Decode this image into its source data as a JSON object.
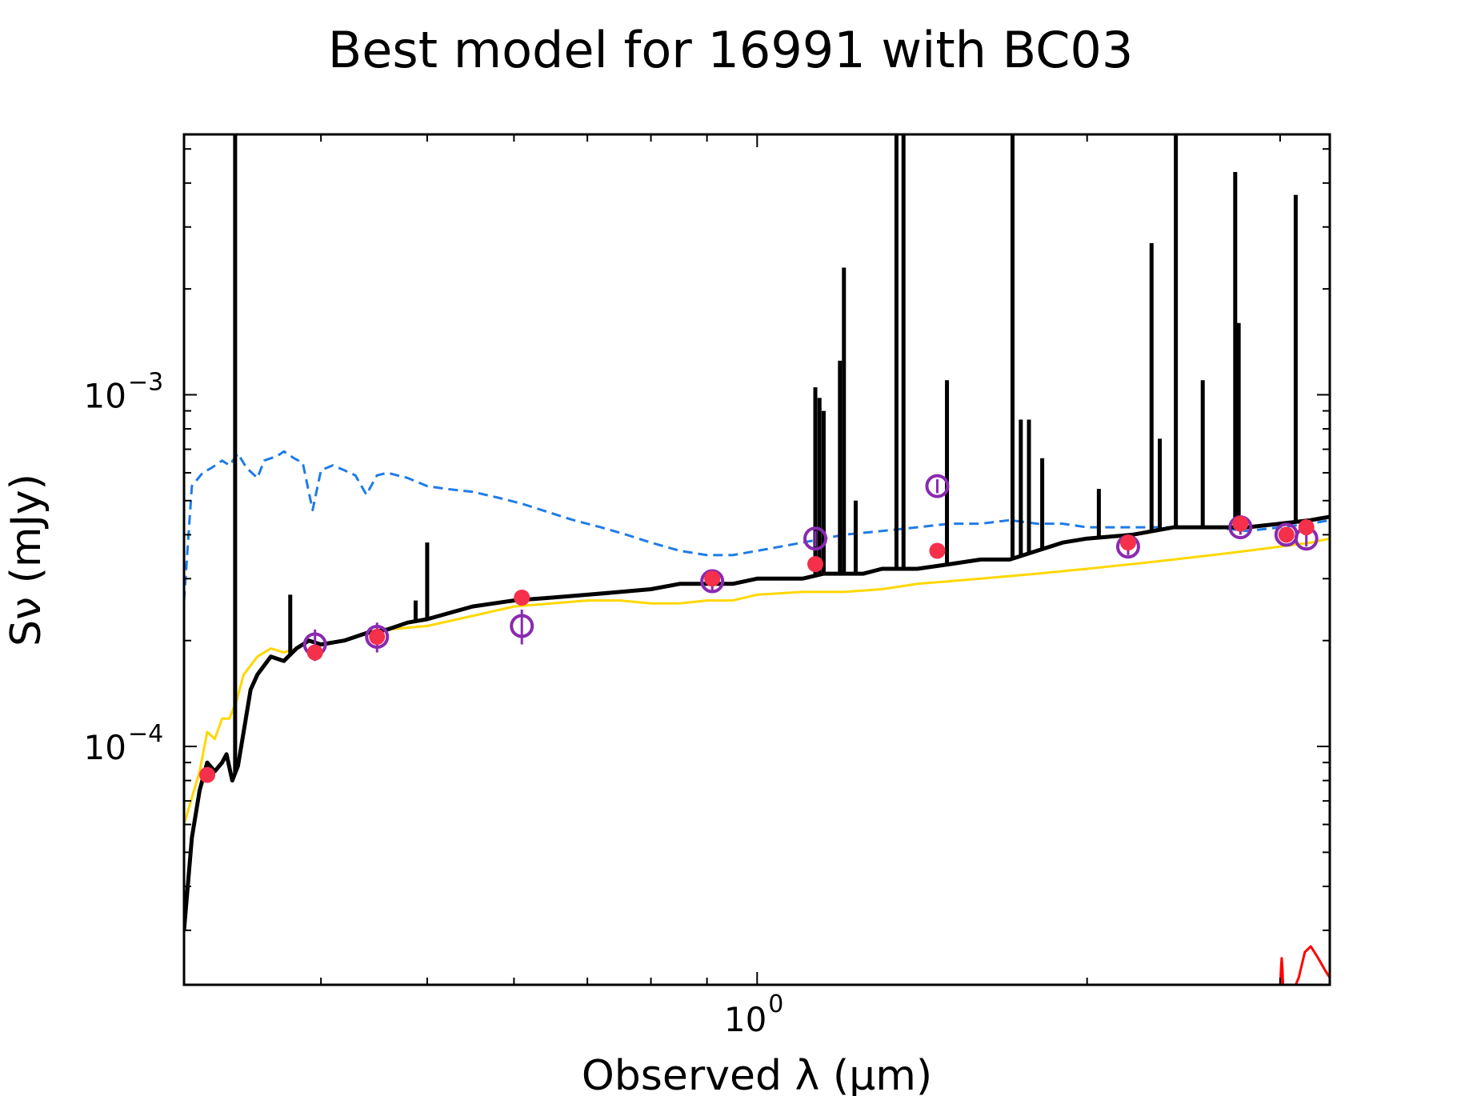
{
  "chart_data": {
    "type": "line",
    "title": "Best model for 16991 with BC03",
    "xlabel": "Observed λ (μm)",
    "ylabel": "Sν (mJy)",
    "xscale": "log",
    "yscale": "log",
    "xlim": [
      0.3,
      3.33
    ],
    "ylim": [
      2.1e-05,
      0.0055
    ],
    "grid": false,
    "legend": "none",
    "xticks": [
      {
        "base": "10",
        "exp": "0",
        "value": 1
      }
    ],
    "yticks": [
      {
        "base": "10",
        "exp": "−4",
        "value": 0.0001
      },
      {
        "base": "10",
        "exp": "−3",
        "value": 0.001
      }
    ],
    "colors": {
      "model": "#000000",
      "stellar_attenuated": "#ffd700",
      "stellar_unattenuated": "#1f7be8",
      "dust": "#ff0000",
      "model_fluxes": "#f5304a",
      "observed_fluxes": "#8a2ab0"
    },
    "series": [
      {
        "style": "dashed",
        "color": "#1f7be8",
        "x": [
          0.3,
          0.305,
          0.312,
          0.318,
          0.325,
          0.33,
          0.336,
          0.342,
          0.35,
          0.355,
          0.36,
          0.365,
          0.37,
          0.378,
          0.385,
          0.393,
          0.4,
          0.41,
          0.42,
          0.43,
          0.44,
          0.45,
          0.46,
          0.48,
          0.5,
          0.52,
          0.55,
          0.58,
          0.61,
          0.65,
          0.68,
          0.72,
          0.76,
          0.8,
          0.85,
          0.9,
          0.95,
          1.0,
          1.05,
          1.1,
          1.15,
          1.2,
          1.3,
          1.4,
          1.5,
          1.6,
          1.7,
          1.8,
          1.9,
          2.0,
          2.2,
          2.4,
          2.6,
          2.8,
          3.0,
          3.2,
          3.33
        ],
        "y": [
          0.00026,
          0.00055,
          0.0006,
          0.00062,
          0.00065,
          0.00063,
          0.00068,
          0.00062,
          0.00058,
          0.00065,
          0.00066,
          0.00067,
          0.00069,
          0.00066,
          0.00064,
          0.00047,
          0.00061,
          0.00063,
          0.00061,
          0.00059,
          0.00052,
          0.00059,
          0.0006,
          0.00058,
          0.00055,
          0.00054,
          0.00053,
          0.00051,
          0.00049,
          0.00046,
          0.00044,
          0.00042,
          0.0004,
          0.00038,
          0.00036,
          0.00035,
          0.00035,
          0.00036,
          0.00037,
          0.00038,
          0.00039,
          0.0004,
          0.00041,
          0.00042,
          0.00043,
          0.00043,
          0.00044,
          0.00043,
          0.00043,
          0.00042,
          0.00042,
          0.00042,
          0.00042,
          0.00041,
          0.00042,
          0.00043,
          0.00044
        ]
      },
      {
        "style": "solid",
        "color": "#ffd700",
        "x": [
          0.3,
          0.31,
          0.315,
          0.32,
          0.325,
          0.33,
          0.335,
          0.34,
          0.35,
          0.36,
          0.37,
          0.38,
          0.39,
          0.4,
          0.42,
          0.44,
          0.46,
          0.5,
          0.55,
          0.6,
          0.65,
          0.7,
          0.75,
          0.8,
          0.85,
          0.9,
          0.95,
          1.0,
          1.1,
          1.2,
          1.3,
          1.4,
          1.5,
          1.6,
          1.8,
          2.0,
          2.2,
          2.4,
          2.6,
          2.8,
          3.0,
          3.2,
          3.33
        ],
        "y": [
          6e-05,
          8.5e-05,
          0.00011,
          0.000105,
          0.00012,
          0.00012,
          0.000135,
          0.00016,
          0.00018,
          0.00019,
          0.000185,
          0.00019,
          0.0002,
          0.000195,
          0.0002,
          0.00021,
          0.000215,
          0.00022,
          0.000235,
          0.00025,
          0.000255,
          0.00026,
          0.00026,
          0.000255,
          0.000255,
          0.00026,
          0.00026,
          0.00027,
          0.000275,
          0.000275,
          0.00028,
          0.00029,
          0.000295,
          0.0003,
          0.00031,
          0.00032,
          0.00033,
          0.00034,
          0.00035,
          0.00036,
          0.00037,
          0.00038,
          0.00039
        ]
      },
      {
        "style": "solid",
        "color": "#000000",
        "x": [
          0.3,
          0.305,
          0.31,
          0.315,
          0.32,
          0.325,
          0.328,
          0.332,
          0.336,
          0.34,
          0.345,
          0.35,
          0.36,
          0.37,
          0.38,
          0.39,
          0.4,
          0.42,
          0.44,
          0.46,
          0.48,
          0.5,
          0.55,
          0.6,
          0.65,
          0.7,
          0.75,
          0.8,
          0.85,
          0.9,
          0.95,
          1.0,
          1.05,
          1.1,
          1.15,
          1.2,
          1.25,
          1.3,
          1.4,
          1.5,
          1.6,
          1.7,
          1.8,
          1.9,
          2.0,
          2.2,
          2.4,
          2.6,
          2.8,
          3.0,
          3.2,
          3.33
        ],
        "y": [
          3e-05,
          5.5e-05,
          7.5e-05,
          9e-05,
          8.5e-05,
          9e-05,
          9.5e-05,
          8e-05,
          8.8e-05,
          0.00011,
          0.000145,
          0.00016,
          0.00018,
          0.000175,
          0.00019,
          0.0002,
          0.000195,
          0.0002,
          0.00021,
          0.000215,
          0.000225,
          0.00023,
          0.00025,
          0.00026,
          0.000265,
          0.00027,
          0.000275,
          0.00028,
          0.00029,
          0.00029,
          0.00029,
          0.0003,
          0.0003,
          0.0003,
          0.00031,
          0.00031,
          0.00031,
          0.00032,
          0.00032,
          0.00033,
          0.00034,
          0.00034,
          0.00036,
          0.00038,
          0.00039,
          0.0004,
          0.00042,
          0.00042,
          0.00042,
          0.00043,
          0.00044,
          0.00045
        ]
      },
      {
        "style": "solid",
        "color": "#ff0000",
        "x": [
          3.0,
          3.005,
          3.01,
          3.015,
          3.02,
          3.03,
          3.05,
          3.08,
          3.12,
          3.16,
          3.2,
          3.25,
          3.3,
          3.33
        ],
        "y": [
          2e-05,
          2.3e-05,
          2.5e-05,
          2.3e-05,
          2e-05,
          1.9e-05,
          1.9e-05,
          2e-05,
          2.2e-05,
          2.6e-05,
          2.7e-05,
          2.5e-05,
          2.3e-05,
          2.2e-05
        ]
      }
    ],
    "emission_lines": [
      {
        "x": 0.334,
        "y": 0.0055
      },
      {
        "x": 0.375,
        "y": 0.00027
      },
      {
        "x": 0.488,
        "y": 0.00026
      },
      {
        "x": 0.5,
        "y": 0.00038
      },
      {
        "x": 1.13,
        "y": 0.00105
      },
      {
        "x": 1.14,
        "y": 0.00098
      },
      {
        "x": 1.15,
        "y": 0.0009
      },
      {
        "x": 1.19,
        "y": 0.00125
      },
      {
        "x": 1.2,
        "y": 0.0023
      },
      {
        "x": 1.23,
        "y": 0.0005
      },
      {
        "x": 1.34,
        "y": 0.0055
      },
      {
        "x": 1.36,
        "y": 0.0055
      },
      {
        "x": 1.49,
        "y": 0.0011
      },
      {
        "x": 1.71,
        "y": 0.0055
      },
      {
        "x": 1.74,
        "y": 0.00085
      },
      {
        "x": 1.77,
        "y": 0.00085
      },
      {
        "x": 1.82,
        "y": 0.00066
      },
      {
        "x": 2.05,
        "y": 0.00054
      },
      {
        "x": 2.29,
        "y": 0.0027
      },
      {
        "x": 2.33,
        "y": 0.00075
      },
      {
        "x": 2.41,
        "y": 0.0055
      },
      {
        "x": 2.55,
        "y": 0.0011
      },
      {
        "x": 2.73,
        "y": 0.0043
      },
      {
        "x": 2.75,
        "y": 0.0016
      },
      {
        "x": 3.1,
        "y": 0.0037
      }
    ],
    "points": [
      {
        "name": "observed",
        "color": "#8a2ab0",
        "marker": "open-circle",
        "x": [
          0.395,
          0.45,
          0.61,
          0.91,
          1.13,
          1.46,
          2.18,
          2.76,
          3.04,
          3.17
        ],
        "y": [
          0.000195,
          0.000205,
          0.00022,
          0.000295,
          0.00039,
          0.00055,
          0.00037,
          0.00042,
          0.0004,
          0.00039
        ],
        "yerr": [
          2e-05,
          2e-05,
          2.5e-05,
          2e-05,
          2e-05,
          2.5e-05,
          2e-05,
          2e-05,
          2e-05,
          2e-05
        ]
      },
      {
        "name": "model",
        "color": "#f5304a",
        "marker": "filled-circle",
        "x": [
          0.315,
          0.395,
          0.45,
          0.61,
          0.91,
          1.13,
          1.46,
          2.18,
          2.76,
          3.04,
          3.17
        ],
        "y": [
          8.3e-05,
          0.000185,
          0.000205,
          0.000265,
          0.0003,
          0.00033,
          0.00036,
          0.00038,
          0.00043,
          0.0004,
          0.00042
        ]
      }
    ]
  }
}
